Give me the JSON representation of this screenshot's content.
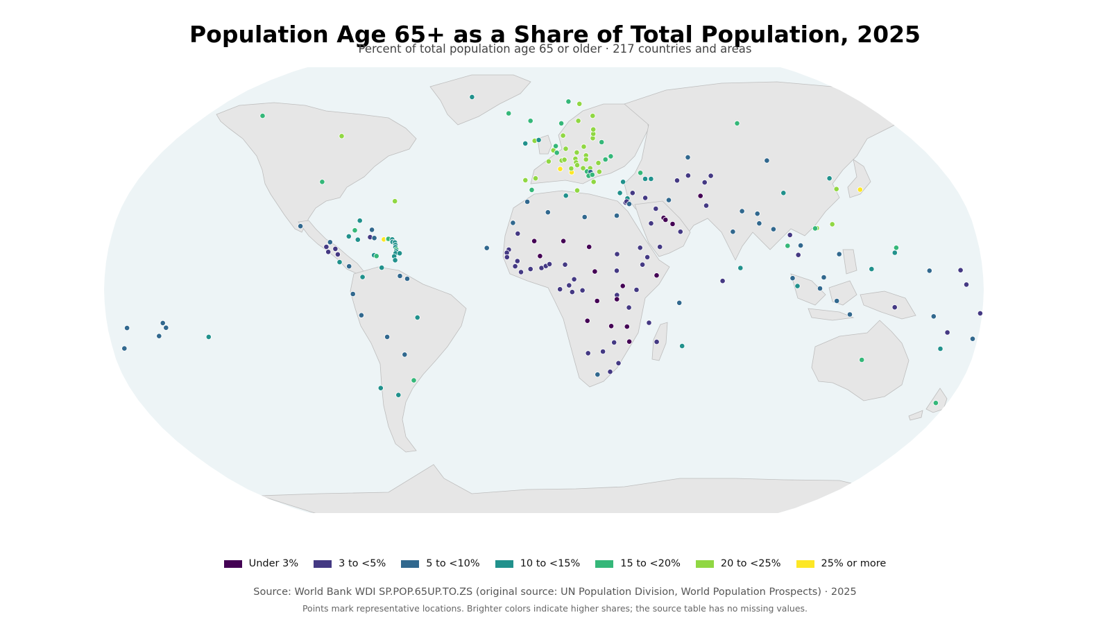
{
  "title": "Population Age 65+ as a Share of Total Population, 2025",
  "subtitle": "Percent of total population age 65 or older · 217 countries and areas",
  "legend": [
    {
      "label": "Under 3%",
      "color": "#440154"
    },
    {
      "label": "3 to <5%",
      "color": "#443983"
    },
    {
      "label": "5 to <10%",
      "color": "#31688e"
    },
    {
      "label": "10 to <15%",
      "color": "#21918c"
    },
    {
      "label": "15 to <20%",
      "color": "#35b779"
    },
    {
      "label": "20 to <25%",
      "color": "#90d743"
    },
    {
      "label": "25% or more",
      "color": "#fde725"
    }
  ],
  "source": "Source: World Bank WDI SP.POP.65UP.TO.ZS (original source: UN Population Division, World Population Prospects) · 2025",
  "note": "Points mark representative locations. Brighter colors indicate higher shares; the source table has no missing values.",
  "colors": {
    "ocean": "#edf4f6",
    "land": "#e6e6e6",
    "land_border": "#bdbdbd"
  },
  "chart_data": {
    "type": "scatter",
    "projection": "Robinson",
    "encoding": "color = share of population age 65+ (category index into legend)",
    "points": [
      {
        "lon": -150,
        "lat": 64,
        "cat": 4
      },
      {
        "lon": -100,
        "lat": 56,
        "cat": 5
      },
      {
        "lon": -98,
        "lat": 39,
        "cat": 4
      },
      {
        "lon": -64,
        "lat": 32,
        "cat": 5
      },
      {
        "lon": -42,
        "lat": 72,
        "cat": 3
      },
      {
        "lon": -19,
        "lat": 65,
        "cat": 4
      },
      {
        "lon": -7,
        "lat": 62,
        "cat": 4
      },
      {
        "lon": -102,
        "lat": 23,
        "cat": 2
      },
      {
        "lon": -90,
        "lat": 15.5,
        "cat": 1
      },
      {
        "lon": -88.7,
        "lat": 17.2,
        "cat": 2
      },
      {
        "lon": -86.2,
        "lat": 14.8,
        "cat": 1
      },
      {
        "lon": -89,
        "lat": 13.7,
        "cat": 1
      },
      {
        "lon": -85,
        "lat": 12.8,
        "cat": 1
      },
      {
        "lon": -84,
        "lat": 10,
        "cat": 3
      },
      {
        "lon": -80,
        "lat": 8.5,
        "cat": 2
      },
      {
        "lon": -79,
        "lat": 21.5,
        "cat": 4
      },
      {
        "lon": -77.3,
        "lat": 18.1,
        "cat": 3
      },
      {
        "lon": -77.4,
        "lat": 25,
        "cat": 3
      },
      {
        "lon": -81.2,
        "lat": 19.3,
        "cat": 3
      },
      {
        "lon": -72.3,
        "lat": 19,
        "cat": 1
      },
      {
        "lon": -70.5,
        "lat": 18.7,
        "cat": 2
      },
      {
        "lon": -71.9,
        "lat": 21.7,
        "cat": 2
      },
      {
        "lon": -66.5,
        "lat": 18.2,
        "cat": 6
      },
      {
        "lon": -64.9,
        "lat": 18.3,
        "cat": 5
      },
      {
        "lon": -64.6,
        "lat": 18.4,
        "cat": 4
      },
      {
        "lon": -63,
        "lat": 18.2,
        "cat": 3
      },
      {
        "lon": -62.8,
        "lat": 17.3,
        "cat": 3
      },
      {
        "lon": -61.8,
        "lat": 17.1,
        "cat": 3
      },
      {
        "lon": -61.5,
        "lat": 16.2,
        "cat": 3
      },
      {
        "lon": -61.4,
        "lat": 15.4,
        "cat": 3
      },
      {
        "lon": -61,
        "lat": 14.6,
        "cat": 4
      },
      {
        "lon": -61,
        "lat": 13.9,
        "cat": 3
      },
      {
        "lon": -61.2,
        "lat": 13.2,
        "cat": 3
      },
      {
        "lon": -59.5,
        "lat": 13.2,
        "cat": 3
      },
      {
        "lon": -61.7,
        "lat": 12.1,
        "cat": 3
      },
      {
        "lon": -61.2,
        "lat": 10.7,
        "cat": 3
      },
      {
        "lon": -70,
        "lat": 12.5,
        "cat": 3
      },
      {
        "lon": -69,
        "lat": 12.2,
        "cat": 4
      },
      {
        "lon": -66.6,
        "lat": 8,
        "cat": 3
      },
      {
        "lon": -74.3,
        "lat": 4.6,
        "cat": 3
      },
      {
        "lon": -59,
        "lat": 5,
        "cat": 2
      },
      {
        "lon": -56,
        "lat": 4,
        "cat": 2
      },
      {
        "lon": -78.2,
        "lat": -1.5,
        "cat": 2
      },
      {
        "lon": -75,
        "lat": -9.2,
        "cat": 2
      },
      {
        "lon": -52,
        "lat": -10,
        "cat": 3
      },
      {
        "lon": -65,
        "lat": -17,
        "cat": 2
      },
      {
        "lon": -58.4,
        "lat": -23.4,
        "cat": 2
      },
      {
        "lon": -71,
        "lat": -35.5,
        "cat": 3
      },
      {
        "lon": -64,
        "lat": -38,
        "cat": 3
      },
      {
        "lon": -56,
        "lat": -32.7,
        "cat": 4
      },
      {
        "lon": -157,
        "lat": -12,
        "cat": 2
      },
      {
        "lon": -156,
        "lat": -13.7,
        "cat": 2
      },
      {
        "lon": -159.5,
        "lat": -16.7,
        "cat": 2
      },
      {
        "lon": -139,
        "lat": -17,
        "cat": 3
      },
      {
        "lon": -9,
        "lat": 53.2,
        "cat": 3
      },
      {
        "lon": -3,
        "lat": 54.5,
        "cat": 4
      },
      {
        "lon": -4.5,
        "lat": 54.2,
        "cat": 5
      },
      {
        "lon": -2.5,
        "lat": 54.5,
        "cat": 3
      },
      {
        "lon": 2.2,
        "lat": 46.5,
        "cat": 5
      },
      {
        "lon": -3.7,
        "lat": 40.3,
        "cat": 5
      },
      {
        "lon": -8.2,
        "lat": 39.6,
        "cat": 5
      },
      {
        "lon": -5.3,
        "lat": 36.1,
        "cat": 4
      },
      {
        "lon": 4.5,
        "lat": 50.6,
        "cat": 5
      },
      {
        "lon": 5.7,
        "lat": 52.2,
        "cat": 4
      },
      {
        "lon": 6.1,
        "lat": 49.7,
        "cat": 4
      },
      {
        "lon": 10.4,
        "lat": 51.2,
        "cat": 5
      },
      {
        "lon": 9.5,
        "lat": 56.2,
        "cat": 5
      },
      {
        "lon": 8.2,
        "lat": 46.8,
        "cat": 5
      },
      {
        "lon": 9.5,
        "lat": 47.1,
        "cat": 5
      },
      {
        "lon": 7.4,
        "lat": 43.7,
        "cat": 6
      },
      {
        "lon": 12.5,
        "lat": 42.5,
        "cat": 6
      },
      {
        "lon": 12.4,
        "lat": 43.9,
        "cat": 5
      },
      {
        "lon": 14.5,
        "lat": 35.9,
        "cat": 5
      },
      {
        "lon": 14.6,
        "lat": 47.5,
        "cat": 5
      },
      {
        "lon": 14.8,
        "lat": 46.1,
        "cat": 5
      },
      {
        "lon": 15.2,
        "lat": 45.1,
        "cat": 5
      },
      {
        "lon": 15.5,
        "lat": 49.8,
        "cat": 5
      },
      {
        "lon": 19.1,
        "lat": 52,
        "cat": 5
      },
      {
        "lon": 19.7,
        "lat": 48.7,
        "cat": 5
      },
      {
        "lon": 19.5,
        "lat": 47.2,
        "cat": 5
      },
      {
        "lon": 17.8,
        "lat": 44,
        "cat": 5
      },
      {
        "lon": 21,
        "lat": 44,
        "cat": 5
      },
      {
        "lon": 19.4,
        "lat": 42.8,
        "cat": 4
      },
      {
        "lon": 21,
        "lat": 42.6,
        "cat": 2
      },
      {
        "lon": 20,
        "lat": 41.2,
        "cat": 4
      },
      {
        "lon": 21.7,
        "lat": 41.6,
        "cat": 4
      },
      {
        "lon": 22,
        "lat": 39,
        "cat": 5
      },
      {
        "lon": 25,
        "lat": 42.7,
        "cat": 5
      },
      {
        "lon": 25,
        "lat": 45.9,
        "cat": 5
      },
      {
        "lon": 28.5,
        "lat": 47.2,
        "cat": 4
      },
      {
        "lon": 31.2,
        "lat": 48.4,
        "cat": 4
      },
      {
        "lon": 28,
        "lat": 53.7,
        "cat": 4
      },
      {
        "lon": 24,
        "lat": 55.2,
        "cat": 5
      },
      {
        "lon": 24.6,
        "lat": 56.9,
        "cat": 5
      },
      {
        "lon": 25,
        "lat": 58.6,
        "cat": 5
      },
      {
        "lon": 26,
        "lat": 64,
        "cat": 5
      },
      {
        "lon": 18,
        "lat": 62,
        "cat": 5
      },
      {
        "lon": 9,
        "lat": 61,
        "cat": 4
      },
      {
        "lon": 20,
        "lat": 69,
        "cat": 5
      },
      {
        "lon": 14,
        "lat": 70,
        "cat": 4
      },
      {
        "lon": 33,
        "lat": 35,
        "cat": 3
      },
      {
        "lon": 35,
        "lat": 39,
        "cat": 3
      },
      {
        "lon": 43.4,
        "lat": 42.3,
        "cat": 4
      },
      {
        "lon": 45,
        "lat": 40.1,
        "cat": 3
      },
      {
        "lon": 47.6,
        "lat": 40.1,
        "cat": 3
      },
      {
        "lon": 36,
        "lat": 33,
        "cat": 3
      },
      {
        "lon": 35,
        "lat": 31.5,
        "cat": 1
      },
      {
        "lon": 35.5,
        "lat": 31.9,
        "cat": 1
      },
      {
        "lon": 38.5,
        "lat": 35,
        "cat": 1
      },
      {
        "lon": 36.5,
        "lat": 31,
        "cat": 2
      },
      {
        "lon": 43.7,
        "lat": 33.2,
        "cat": 1
      },
      {
        "lon": 53.7,
        "lat": 32.4,
        "cat": 2
      },
      {
        "lon": 47.6,
        "lat": 29.3,
        "cat": 1
      },
      {
        "lon": 50.5,
        "lat": 26,
        "cat": 0
      },
      {
        "lon": 51.2,
        "lat": 25.3,
        "cat": 0
      },
      {
        "lon": 54,
        "lat": 23.8,
        "cat": 0
      },
      {
        "lon": 45,
        "lat": 24,
        "cat": 1
      },
      {
        "lon": 57,
        "lat": 21,
        "cat": 1
      },
      {
        "lon": 48,
        "lat": 15.5,
        "cat": 1
      },
      {
        "lon": 59,
        "lat": 39.5,
        "cat": 1
      },
      {
        "lon": 64.5,
        "lat": 41.3,
        "cat": 1
      },
      {
        "lon": 74.6,
        "lat": 41.2,
        "cat": 1
      },
      {
        "lon": 71,
        "lat": 38.8,
        "cat": 1
      },
      {
        "lon": 67.7,
        "lat": 33.9,
        "cat": 0
      },
      {
        "lon": 69.3,
        "lat": 30.4,
        "cat": 1
      },
      {
        "lon": 67,
        "lat": 48,
        "cat": 2
      },
      {
        "lon": 100,
        "lat": 61,
        "cat": 4
      },
      {
        "lon": 103,
        "lat": 46.8,
        "cat": 2
      },
      {
        "lon": 104,
        "lat": 35,
        "cat": 3
      },
      {
        "lon": 127,
        "lat": 40.3,
        "cat": 3
      },
      {
        "lon": 127.8,
        "lat": 36.4,
        "cat": 5
      },
      {
        "lon": 138,
        "lat": 36.2,
        "cat": 6
      },
      {
        "lon": 121,
        "lat": 23.7,
        "cat": 5
      },
      {
        "lon": 114.2,
        "lat": 22.3,
        "cat": 5
      },
      {
        "lon": 113.5,
        "lat": 22.2,
        "cat": 4
      },
      {
        "lon": 78.9,
        "lat": 21,
        "cat": 2
      },
      {
        "lon": 84.1,
        "lat": 28.4,
        "cat": 2
      },
      {
        "lon": 90.4,
        "lat": 27.5,
        "cat": 2
      },
      {
        "lon": 90.4,
        "lat": 24,
        "cat": 2
      },
      {
        "lon": 96,
        "lat": 21.9,
        "cat": 2
      },
      {
        "lon": 100.9,
        "lat": 15.9,
        "cat": 4
      },
      {
        "lon": 102.5,
        "lat": 19.8,
        "cat": 1
      },
      {
        "lon": 104.9,
        "lat": 12.6,
        "cat": 1
      },
      {
        "lon": 106.3,
        "lat": 16,
        "cat": 2
      },
      {
        "lon": 80.7,
        "lat": 7.9,
        "cat": 3
      },
      {
        "lon": 73.2,
        "lat": 3.2,
        "cat": 1
      },
      {
        "lon": 101.9,
        "lat": 4.2,
        "cat": 2
      },
      {
        "lon": 103.8,
        "lat": 1.35,
        "cat": 3
      },
      {
        "lon": 114.7,
        "lat": 4.5,
        "cat": 2
      },
      {
        "lon": 113,
        "lat": 0.5,
        "cat": 2
      },
      {
        "lon": 121.8,
        "lat": 12.9,
        "cat": 2
      },
      {
        "lon": 120,
        "lat": -4,
        "cat": 2
      },
      {
        "lon": 125.7,
        "lat": -8.9,
        "cat": 2
      },
      {
        "lon": 134.5,
        "lat": 7.5,
        "cat": 3
      },
      {
        "lon": 144.8,
        "lat": 13.4,
        "cat": 3
      },
      {
        "lon": 145.7,
        "lat": 15.2,
        "cat": 4
      },
      {
        "lon": 143.9,
        "lat": -6.3,
        "cat": 1
      },
      {
        "lon": 158.2,
        "lat": 6.9,
        "cat": 2
      },
      {
        "lon": 171,
        "lat": 7.1,
        "cat": 1
      },
      {
        "lon": 160.2,
        "lat": -9.6,
        "cat": 2
      },
      {
        "lon": 173,
        "lat": 1.9,
        "cat": 1
      },
      {
        "lon": 179.2,
        "lat": -8.5,
        "cat": 1
      },
      {
        "lon": 166.9,
        "lat": -15.4,
        "cat": 1
      },
      {
        "lon": 178,
        "lat": -17.7,
        "cat": 2
      },
      {
        "lon": 165.6,
        "lat": -21.3,
        "cat": 3
      },
      {
        "lon": -175.2,
        "lat": -21.2,
        "cat": 2
      },
      {
        "lon": -172.1,
        "lat": -13.8,
        "cat": 2
      },
      {
        "lon": 133.8,
        "lat": -25.3,
        "cat": 4
      },
      {
        "lon": 174.9,
        "lat": -40.9,
        "cat": 4
      },
      {
        "lon": -23.6,
        "lat": 15.1,
        "cat": 2
      },
      {
        "lon": -14.5,
        "lat": 14.5,
        "cat": 1
      },
      {
        "lon": -15.3,
        "lat": 13.4,
        "cat": 1
      },
      {
        "lon": -15.2,
        "lat": 11.8,
        "cat": 1
      },
      {
        "lon": -10.9,
        "lat": 10.4,
        "cat": 1
      },
      {
        "lon": -11.8,
        "lat": 8.5,
        "cat": 1
      },
      {
        "lon": -9.4,
        "lat": 6.4,
        "cat": 1
      },
      {
        "lon": -10.9,
        "lat": 20.3,
        "cat": 1
      },
      {
        "lon": -13,
        "lat": 24.2,
        "cat": 2
      },
      {
        "lon": -7.1,
        "lat": 31.8,
        "cat": 2
      },
      {
        "lon": 1.7,
        "lat": 28,
        "cat": 2
      },
      {
        "lon": 9.5,
        "lat": 34,
        "cat": 3
      },
      {
        "lon": 17.2,
        "lat": 26.3,
        "cat": 2
      },
      {
        "lon": 30.8,
        "lat": 26.8,
        "cat": 2
      },
      {
        "lon": -4,
        "lat": 17.6,
        "cat": 0
      },
      {
        "lon": 8.1,
        "lat": 17.6,
        "cat": 0
      },
      {
        "lon": 18.7,
        "lat": 15.5,
        "cat": 0
      },
      {
        "lon": 30.2,
        "lat": 12.9,
        "cat": 1
      },
      {
        "lon": 39.8,
        "lat": 15.2,
        "cat": 1
      },
      {
        "lon": -1.6,
        "lat": 12.2,
        "cat": 0
      },
      {
        "lon": -5.5,
        "lat": 7.5,
        "cat": 1
      },
      {
        "lon": -1,
        "lat": 7.9,
        "cat": 1
      },
      {
        "lon": 0.8,
        "lat": 8.6,
        "cat": 1
      },
      {
        "lon": 2.3,
        "lat": 9.3,
        "cat": 1
      },
      {
        "lon": 8.7,
        "lat": 9.1,
        "cat": 1
      },
      {
        "lon": 20.9,
        "lat": 6.6,
        "cat": 0
      },
      {
        "lon": 29.9,
        "lat": 6.9,
        "cat": 1
      },
      {
        "lon": 40.5,
        "lat": 9.1,
        "cat": 1
      },
      {
        "lon": 42.6,
        "lat": 11.8,
        "cat": 1
      },
      {
        "lon": 46.2,
        "lat": 5.2,
        "cat": 0
      },
      {
        "lon": 12.4,
        "lat": 3.8,
        "cat": 1
      },
      {
        "lon": 6.6,
        "lat": 0.2,
        "cat": 1
      },
      {
        "lon": 10.3,
        "lat": 1.6,
        "cat": 1
      },
      {
        "lon": 11.6,
        "lat": -0.8,
        "cat": 1
      },
      {
        "lon": 15.8,
        "lat": -0.2,
        "cat": 1
      },
      {
        "lon": 32.3,
        "lat": 1.4,
        "cat": 0
      },
      {
        "lon": 37.9,
        "lat": 0,
        "cat": 1
      },
      {
        "lon": 29.9,
        "lat": -1.9,
        "cat": 1
      },
      {
        "lon": 29.9,
        "lat": -3.4,
        "cat": 0
      },
      {
        "lon": 34.9,
        "lat": -6.4,
        "cat": 1
      },
      {
        "lon": 21.8,
        "lat": -4,
        "cat": 0
      },
      {
        "lon": 17.9,
        "lat": -11.2,
        "cat": 0
      },
      {
        "lon": 27.8,
        "lat": -13.1,
        "cat": 0
      },
      {
        "lon": 34.3,
        "lat": -13.3,
        "cat": 0
      },
      {
        "lon": 35.5,
        "lat": -18.7,
        "cat": 0
      },
      {
        "lon": 29.2,
        "lat": -19,
        "cat": 1
      },
      {
        "lon": 18.5,
        "lat": -22.9,
        "cat": 1
      },
      {
        "lon": 24.7,
        "lat": -22.3,
        "cat": 1
      },
      {
        "lon": 31.5,
        "lat": -26.5,
        "cat": 1
      },
      {
        "lon": 22.9,
        "lat": -30.6,
        "cat": 2
      },
      {
        "lon": 28.2,
        "lat": -29.6,
        "cat": 1
      },
      {
        "lon": 43.3,
        "lat": -11.9,
        "cat": 1
      },
      {
        "lon": 46.9,
        "lat": -18.8,
        "cat": 1
      },
      {
        "lon": 57.6,
        "lat": -20.3,
        "cat": 3
      },
      {
        "lon": 55.5,
        "lat": -4.7,
        "cat": 2
      }
    ]
  }
}
